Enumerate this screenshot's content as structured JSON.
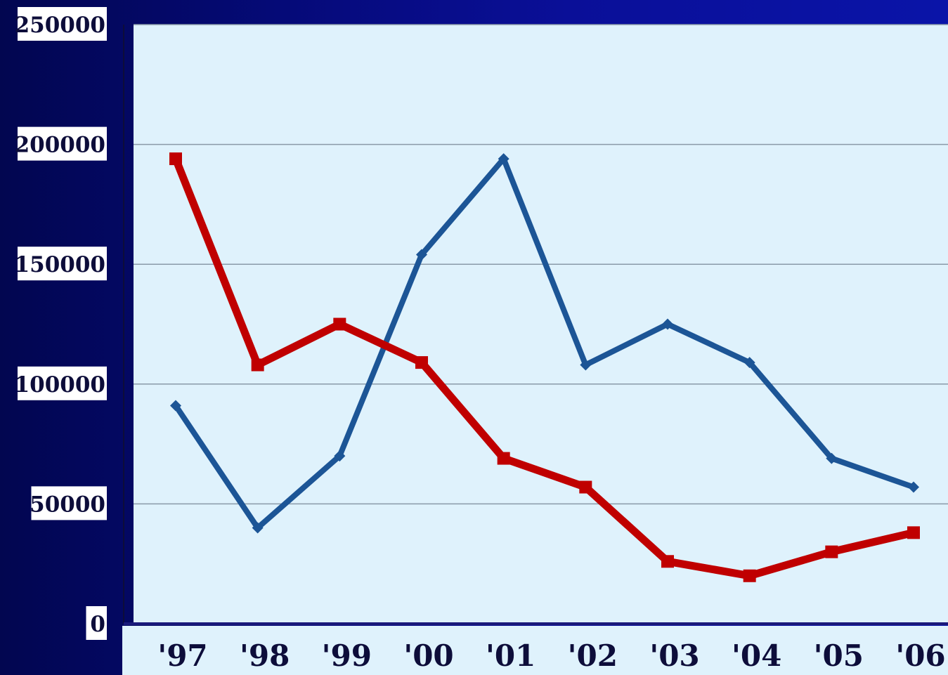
{
  "chart_data": {
    "type": "line",
    "categories": [
      "'97",
      "'98",
      "'99",
      "'00",
      "'01",
      "'02",
      "'03",
      "'04",
      "'05",
      "'06"
    ],
    "series": [
      {
        "values": [
          91000,
          40000,
          70000,
          154000,
          194000,
          108000,
          125000,
          109000,
          69000,
          57000
        ],
        "color": "#1c5596",
        "marker": "diamond"
      },
      {
        "values": [
          194000,
          108000,
          125000,
          109000,
          69000,
          57000,
          26000,
          20000,
          30000,
          38000
        ],
        "color": "#c00000",
        "marker": "square"
      }
    ],
    "ylim": [
      0,
      250000
    ],
    "yticks": [
      "250000",
      "200000",
      "150000",
      "100000",
      "50000",
      "0"
    ],
    "grid": true
  }
}
